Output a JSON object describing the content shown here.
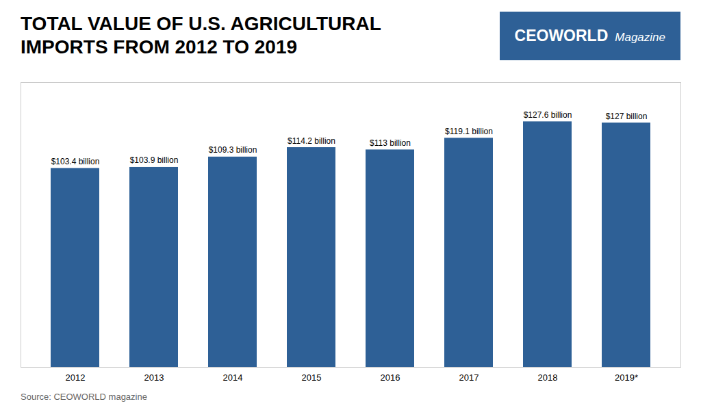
{
  "chart_data": {
    "type": "bar",
    "title": "TOTAL VALUE OF U.S. AGRICULTURAL\nIMPORTS FROM 2012 TO 2019",
    "annotations": [
      "CEOWORLD",
      "Magazine",
      "Source: CEOWORLD magazine"
    ],
    "categories": [
      "2012",
      "2013",
      "2014",
      "2015",
      "2016",
      "2017",
      "2018",
      "2019*"
    ],
    "values": [
      103.4,
      103.9,
      109.3,
      114.2,
      113.0,
      119.1,
      127.6,
      127.0
    ],
    "value_labels": [
      "$103.4 billion",
      "$103.9 billion",
      "$109.3 billion",
      "$114.2 billion",
      "$113 billion",
      "$119.1 billion",
      "$127.6 billion",
      "$127 billion"
    ],
    "data_labels": true,
    "color": "#2e6096",
    "ylim": [
      0,
      148
    ],
    "tick_labels": "x",
    "grid": false
  }
}
